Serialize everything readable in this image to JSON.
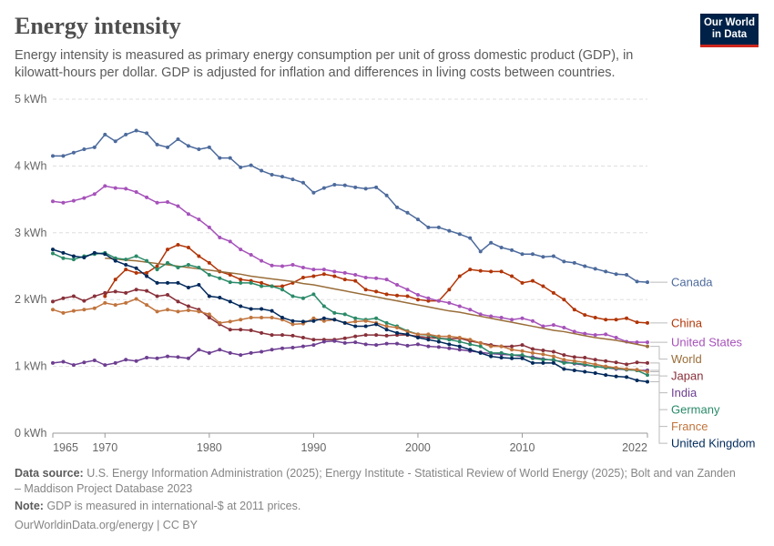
{
  "header": {
    "title": "Energy intensity",
    "subtitle": "Energy intensity is measured as primary energy consumption per unit of gross domestic product (GDP), in kilowatt-hours per dollar. GDP is adjusted for inflation and differences in living costs between countries."
  },
  "logo": {
    "line1": "Our World",
    "line2": "in Data"
  },
  "footer": {
    "source_label": "Data source:",
    "source_text": "U.S. Energy Information Administration (2025); Energy Institute - Statistical Review of World Energy (2025); Bolt and van Zanden – Maddison Project Database 2023",
    "note_label": "Note:",
    "note_text": "GDP is measured in international-$ at 2011 prices.",
    "url": "OurWorldinData.org/energy | CC BY"
  },
  "chart_data": {
    "type": "line",
    "title": "Energy intensity",
    "xlabel": "",
    "ylabel": "",
    "xlim": [
      1965,
      2022
    ],
    "ylim": [
      0,
      5
    ],
    "y_ticks": [
      0,
      1,
      2,
      3,
      4,
      5
    ],
    "y_tick_labels": [
      "0 kWh",
      "1 kWh",
      "2 kWh",
      "3 kWh",
      "4 kWh",
      "5 kWh"
    ],
    "x_ticks": [
      1965,
      1970,
      1980,
      1990,
      2000,
      2010,
      2022
    ],
    "grid": true,
    "x_start": 1965,
    "series": [
      {
        "name": "Canada",
        "color": "#4c6a9c",
        "start": 1965,
        "values": [
          4.15,
          4.15,
          4.2,
          4.25,
          4.28,
          4.47,
          4.37,
          4.47,
          4.53,
          4.49,
          4.32,
          4.28,
          4.4,
          4.3,
          4.25,
          4.28,
          4.12,
          4.12,
          3.98,
          4.01,
          3.93,
          3.87,
          3.84,
          3.8,
          3.75,
          3.6,
          3.67,
          3.72,
          3.71,
          3.68,
          3.66,
          3.68,
          3.56,
          3.38,
          3.3,
          3.2,
          3.08,
          3.08,
          3.03,
          2.98,
          2.92,
          2.72,
          2.85,
          2.78,
          2.74,
          2.68,
          2.68,
          2.64,
          2.65,
          2.57,
          2.55,
          2.5,
          2.46,
          2.42,
          2.38,
          2.37,
          2.27,
          2.26
        ]
      },
      {
        "name": "China",
        "color": "#b13507",
        "start": 1970,
        "values": [
          2.05,
          2.3,
          2.45,
          2.4,
          2.4,
          2.5,
          2.75,
          2.82,
          2.78,
          2.65,
          2.55,
          2.42,
          2.37,
          2.3,
          2.28,
          2.25,
          2.2,
          2.2,
          2.25,
          2.33,
          2.35,
          2.38,
          2.35,
          2.3,
          2.28,
          2.15,
          2.12,
          2.08,
          2.06,
          2.05,
          2.0,
          1.98,
          1.98,
          2.15,
          2.35,
          2.45,
          2.43,
          2.42,
          2.42,
          2.35,
          2.25,
          2.28,
          2.2,
          2.1,
          2.0,
          1.85,
          1.77,
          1.73,
          1.7,
          1.7,
          1.72,
          1.66,
          1.65
        ]
      },
      {
        "name": "United States",
        "color": "#a652ba",
        "start": 1965,
        "values": [
          3.47,
          3.45,
          3.48,
          3.52,
          3.58,
          3.7,
          3.67,
          3.66,
          3.61,
          3.53,
          3.45,
          3.46,
          3.4,
          3.28,
          3.2,
          3.08,
          2.93,
          2.87,
          2.75,
          2.67,
          2.58,
          2.51,
          2.5,
          2.52,
          2.48,
          2.45,
          2.45,
          2.42,
          2.4,
          2.37,
          2.33,
          2.32,
          2.3,
          2.22,
          2.15,
          2.07,
          2.02,
          1.98,
          1.95,
          1.9,
          1.85,
          1.78,
          1.75,
          1.73,
          1.7,
          1.72,
          1.68,
          1.6,
          1.62,
          1.58,
          1.52,
          1.49,
          1.47,
          1.48,
          1.43,
          1.37,
          1.36,
          1.36
        ]
      },
      {
        "name": "World",
        "color": "#996d39",
        "start": 1970,
        "values": [
          2.62,
          2.61,
          2.59,
          2.58,
          2.56,
          2.54,
          2.52,
          2.5,
          2.48,
          2.46,
          2.44,
          2.42,
          2.4,
          2.38,
          2.35,
          2.33,
          2.31,
          2.29,
          2.27,
          2.24,
          2.22,
          2.19,
          2.16,
          2.13,
          2.1,
          2.07,
          2.04,
          2.01,
          1.98,
          1.95,
          1.92,
          1.89,
          1.86,
          1.83,
          1.81,
          1.78,
          1.75,
          1.72,
          1.69,
          1.66,
          1.63,
          1.6,
          1.57,
          1.54,
          1.52,
          1.49,
          1.46,
          1.43,
          1.41,
          1.39,
          1.36,
          1.33,
          1.3
        ]
      },
      {
        "name": "Japan",
        "color": "#883039",
        "start": 1965,
        "values": [
          1.97,
          2.02,
          2.05,
          1.98,
          2.05,
          2.1,
          2.12,
          2.1,
          2.15,
          2.13,
          2.05,
          2.07,
          1.97,
          1.9,
          1.85,
          1.73,
          1.63,
          1.55,
          1.55,
          1.54,
          1.5,
          1.47,
          1.47,
          1.46,
          1.43,
          1.4,
          1.4,
          1.4,
          1.42,
          1.45,
          1.47,
          1.47,
          1.46,
          1.47,
          1.47,
          1.45,
          1.43,
          1.42,
          1.41,
          1.42,
          1.38,
          1.35,
          1.32,
          1.3,
          1.3,
          1.32,
          1.26,
          1.24,
          1.22,
          1.17,
          1.14,
          1.13,
          1.1,
          1.08,
          1.06,
          1.03,
          1.06,
          1.05
        ]
      },
      {
        "name": "India",
        "color": "#6d3e91",
        "start": 1965,
        "values": [
          1.05,
          1.07,
          1.02,
          1.06,
          1.09,
          1.02,
          1.05,
          1.1,
          1.08,
          1.13,
          1.12,
          1.15,
          1.14,
          1.12,
          1.25,
          1.2,
          1.25,
          1.2,
          1.17,
          1.2,
          1.22,
          1.25,
          1.27,
          1.28,
          1.3,
          1.32,
          1.37,
          1.38,
          1.35,
          1.36,
          1.33,
          1.32,
          1.34,
          1.34,
          1.31,
          1.33,
          1.3,
          1.29,
          1.27,
          1.25,
          1.23,
          1.21,
          1.19,
          1.18,
          1.17,
          1.15,
          1.14,
          1.11,
          1.09,
          1.07,
          1.04,
          1.02,
          1.0,
          0.98,
          0.96,
          0.95,
          0.94,
          0.94
        ]
      },
      {
        "name": "Germany",
        "color": "#2a8a68",
        "start": 1965,
        "values": [
          2.69,
          2.62,
          2.6,
          2.65,
          2.68,
          2.7,
          2.62,
          2.6,
          2.65,
          2.58,
          2.45,
          2.55,
          2.48,
          2.52,
          2.48,
          2.37,
          2.32,
          2.26,
          2.25,
          2.25,
          2.2,
          2.2,
          2.15,
          2.05,
          2.02,
          2.08,
          1.9,
          1.8,
          1.78,
          1.72,
          1.7,
          1.72,
          1.65,
          1.6,
          1.53,
          1.48,
          1.47,
          1.42,
          1.4,
          1.37,
          1.33,
          1.3,
          1.2,
          1.2,
          1.17,
          1.17,
          1.12,
          1.1,
          1.1,
          1.05,
          1.05,
          1.03,
          1.0,
          0.98,
          0.97,
          0.95,
          0.94,
          0.87
        ]
      },
      {
        "name": "France",
        "color": "#c0743d",
        "start": 1965,
        "values": [
          1.85,
          1.8,
          1.83,
          1.85,
          1.87,
          1.95,
          1.92,
          1.95,
          2.01,
          1.92,
          1.82,
          1.85,
          1.82,
          1.84,
          1.82,
          1.78,
          1.65,
          1.67,
          1.7,
          1.73,
          1.73,
          1.73,
          1.7,
          1.63,
          1.64,
          1.72,
          1.68,
          1.7,
          1.65,
          1.67,
          1.68,
          1.65,
          1.6,
          1.58,
          1.52,
          1.48,
          1.48,
          1.45,
          1.45,
          1.43,
          1.4,
          1.35,
          1.3,
          1.3,
          1.25,
          1.23,
          1.2,
          1.18,
          1.15,
          1.1,
          1.08,
          1.06,
          1.03,
          1.0,
          0.98,
          0.96,
          0.95,
          0.92
        ]
      },
      {
        "name": "United Kingdom",
        "color": "#00295b",
        "start": 1965,
        "values": [
          2.75,
          2.7,
          2.65,
          2.63,
          2.7,
          2.68,
          2.58,
          2.52,
          2.47,
          2.35,
          2.25,
          2.25,
          2.25,
          2.18,
          2.22,
          2.05,
          2.03,
          1.97,
          1.9,
          1.86,
          1.86,
          1.83,
          1.73,
          1.68,
          1.67,
          1.68,
          1.72,
          1.7,
          1.65,
          1.6,
          1.6,
          1.63,
          1.55,
          1.5,
          1.48,
          1.43,
          1.4,
          1.37,
          1.33,
          1.3,
          1.25,
          1.2,
          1.15,
          1.13,
          1.12,
          1.12,
          1.05,
          1.05,
          1.05,
          0.96,
          0.94,
          0.92,
          0.9,
          0.87,
          0.85,
          0.84,
          0.79,
          0.77
        ]
      }
    ],
    "label_order": [
      "Canada",
      "China",
      "United States",
      "World",
      "Japan",
      "India",
      "Germany",
      "France",
      "United Kingdom"
    ]
  }
}
